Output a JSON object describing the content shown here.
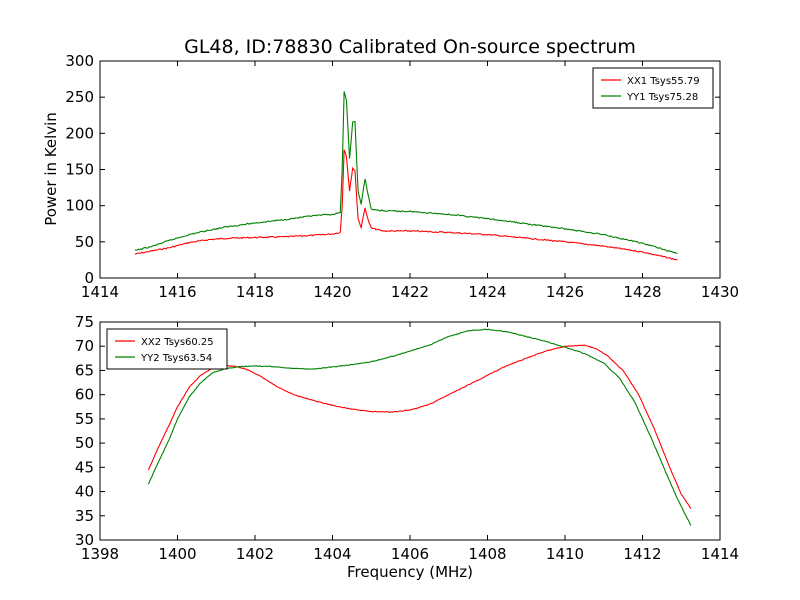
{
  "colors": {
    "xx": "#ff0000",
    "yy": "#008000",
    "frame": "#000000",
    "background": "#ffffff"
  },
  "chart_data": [
    {
      "type": "line",
      "title": "GL48, ID:78830 Calibrated On-source spectrum",
      "xlabel": "",
      "ylabel": "Power in Kelvin",
      "xlim": [
        1414,
        1430
      ],
      "ylim": [
        0,
        300
      ],
      "xticks": [
        1414,
        1416,
        1418,
        1420,
        1422,
        1424,
        1426,
        1428,
        1430
      ],
      "yticks": [
        0,
        50,
        100,
        150,
        200,
        250,
        300
      ],
      "grid": false,
      "legend_position": "top-right",
      "series": [
        {
          "name": "XX1 Tsys55.79",
          "color": "#ff0000",
          "points": [
            [
              1414.9,
              33
            ],
            [
              1415.3,
              37
            ],
            [
              1415.8,
              42
            ],
            [
              1416.3,
              49
            ],
            [
              1416.8,
              53
            ],
            [
              1417.3,
              55
            ],
            [
              1418.0,
              56
            ],
            [
              1418.8,
              57
            ],
            [
              1419.5,
              59
            ],
            [
              1420.0,
              61
            ],
            [
              1420.2,
              63
            ],
            [
              1420.25,
              100
            ],
            [
              1420.3,
              178
            ],
            [
              1420.36,
              168
            ],
            [
              1420.44,
              120
            ],
            [
              1420.52,
              152
            ],
            [
              1420.58,
              148
            ],
            [
              1420.66,
              82
            ],
            [
              1420.74,
              70
            ],
            [
              1420.84,
              97
            ],
            [
              1420.92,
              80
            ],
            [
              1421.0,
              69
            ],
            [
              1421.3,
              65
            ],
            [
              1422.0,
              65
            ],
            [
              1423.0,
              63
            ],
            [
              1424.0,
              60
            ],
            [
              1425.0,
              55
            ],
            [
              1426.0,
              50
            ],
            [
              1427.0,
              44
            ],
            [
              1428.0,
              36
            ],
            [
              1428.9,
              25
            ]
          ]
        },
        {
          "name": "YY1 Tsys75.28",
          "color": "#008000",
          "points": [
            [
              1414.9,
              38
            ],
            [
              1415.3,
              43
            ],
            [
              1415.8,
              52
            ],
            [
              1416.3,
              60
            ],
            [
              1416.8,
              66
            ],
            [
              1417.3,
              71
            ],
            [
              1418.0,
              76
            ],
            [
              1418.8,
              81
            ],
            [
              1419.5,
              86
            ],
            [
              1420.0,
              88
            ],
            [
              1420.2,
              90
            ],
            [
              1420.25,
              150
            ],
            [
              1420.3,
              258
            ],
            [
              1420.36,
              245
            ],
            [
              1420.44,
              165
            ],
            [
              1420.52,
              215
            ],
            [
              1420.58,
              216
            ],
            [
              1420.66,
              120
            ],
            [
              1420.74,
              102
            ],
            [
              1420.84,
              137
            ],
            [
              1420.92,
              115
            ],
            [
              1421.0,
              95
            ],
            [
              1421.3,
              93
            ],
            [
              1422.0,
              92
            ],
            [
              1423.0,
              88
            ],
            [
              1424.0,
              82
            ],
            [
              1425.0,
              75
            ],
            [
              1426.0,
              68
            ],
            [
              1427.0,
              60
            ],
            [
              1428.0,
              48
            ],
            [
              1428.9,
              34
            ]
          ]
        }
      ]
    },
    {
      "type": "line",
      "title": "",
      "xlabel": "Frequency (MHz)",
      "ylabel": "",
      "xlim": [
        1398,
        1414
      ],
      "ylim": [
        30,
        75
      ],
      "xticks": [
        1398,
        1400,
        1402,
        1404,
        1406,
        1408,
        1410,
        1412,
        1414
      ],
      "yticks": [
        30,
        35,
        40,
        45,
        50,
        55,
        60,
        65,
        70,
        75
      ],
      "grid": false,
      "legend_position": "top-left",
      "series": [
        {
          "name": "XX2 Tsys60.25",
          "color": "#ff0000",
          "points": [
            [
              1399.25,
              44.5
            ],
            [
              1399.5,
              49
            ],
            [
              1399.8,
              54
            ],
            [
              1400.0,
              57.5
            ],
            [
              1400.3,
              61.5
            ],
            [
              1400.6,
              64
            ],
            [
              1400.9,
              65.5
            ],
            [
              1401.2,
              66
            ],
            [
              1401.5,
              65.8
            ],
            [
              1401.8,
              65.2
            ],
            [
              1402.2,
              63.5
            ],
            [
              1402.6,
              61.5
            ],
            [
              1403.0,
              60
            ],
            [
              1403.5,
              58.8
            ],
            [
              1404.0,
              57.8
            ],
            [
              1404.5,
              57
            ],
            [
              1405.0,
              56.5
            ],
            [
              1405.5,
              56.4
            ],
            [
              1406.0,
              56.8
            ],
            [
              1406.5,
              58
            ],
            [
              1407.0,
              60
            ],
            [
              1407.5,
              62
            ],
            [
              1408.0,
              64
            ],
            [
              1408.5,
              66
            ],
            [
              1409.0,
              67.5
            ],
            [
              1409.5,
              69
            ],
            [
              1410.0,
              70
            ],
            [
              1410.5,
              70.2
            ],
            [
              1410.8,
              69.5
            ],
            [
              1411.1,
              68
            ],
            [
              1411.5,
              65
            ],
            [
              1411.9,
              60
            ],
            [
              1412.3,
              53
            ],
            [
              1412.7,
              45
            ],
            [
              1413.0,
              39.5
            ],
            [
              1413.25,
              36.5
            ]
          ]
        },
        {
          "name": "YY2 Tsys63.54",
          "color": "#008000",
          "points": [
            [
              1399.25,
              41.5
            ],
            [
              1399.5,
              46
            ],
            [
              1399.8,
              51
            ],
            [
              1400.0,
              55
            ],
            [
              1400.3,
              59.5
            ],
            [
              1400.6,
              62.5
            ],
            [
              1400.9,
              64.5
            ],
            [
              1401.2,
              65.3
            ],
            [
              1401.6,
              65.8
            ],
            [
              1402.0,
              65.9
            ],
            [
              1402.5,
              65.8
            ],
            [
              1403.0,
              65.4
            ],
            [
              1403.5,
              65.3
            ],
            [
              1404.0,
              65.7
            ],
            [
              1404.5,
              66.2
            ],
            [
              1405.0,
              66.8
            ],
            [
              1405.5,
              67.8
            ],
            [
              1406.0,
              69
            ],
            [
              1406.5,
              70.2
            ],
            [
              1407.0,
              72
            ],
            [
              1407.5,
              73.2
            ],
            [
              1408.0,
              73.5
            ],
            [
              1408.5,
              73
            ],
            [
              1409.0,
              72
            ],
            [
              1409.5,
              71
            ],
            [
              1410.0,
              69.8
            ],
            [
              1410.5,
              68.5
            ],
            [
              1411.0,
              66.5
            ],
            [
              1411.4,
              63.5
            ],
            [
              1411.8,
              58.5
            ],
            [
              1412.2,
              51.5
            ],
            [
              1412.6,
              44
            ],
            [
              1412.9,
              38.5
            ],
            [
              1413.25,
              33
            ]
          ]
        }
      ]
    }
  ]
}
